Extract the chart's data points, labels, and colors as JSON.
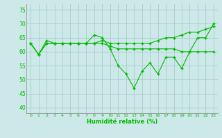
{
  "xlabel": "Humidité relative (%)",
  "xlim": [
    -0.5,
    23.5
  ],
  "ylim": [
    38,
    77
  ],
  "yticks": [
    40,
    45,
    50,
    55,
    60,
    65,
    70,
    75
  ],
  "xticks": [
    0,
    1,
    2,
    3,
    4,
    5,
    6,
    7,
    8,
    9,
    10,
    11,
    12,
    13,
    14,
    15,
    16,
    17,
    18,
    19,
    20,
    21,
    22,
    23
  ],
  "background_color": "#cce8e8",
  "grid_color": "#aacccc",
  "line_color": "#00bb00",
  "line_jagged": [
    63,
    59,
    64,
    63,
    63,
    63,
    63,
    63,
    66,
    65,
    61,
    55,
    52,
    47,
    53,
    56,
    52,
    58,
    58,
    54,
    60,
    65,
    65,
    70
  ],
  "line_flat": [
    63,
    59,
    63,
    63,
    63,
    63,
    63,
    63,
    63,
    63,
    62,
    61,
    61,
    61,
    61,
    61,
    61,
    61,
    61,
    60,
    60,
    60,
    60,
    60
  ],
  "line_rising": [
    63,
    59,
    63,
    63,
    63,
    63,
    63,
    63,
    63,
    64,
    63,
    63,
    63,
    63,
    63,
    63,
    64,
    65,
    65,
    66,
    67,
    67,
    68,
    69
  ]
}
